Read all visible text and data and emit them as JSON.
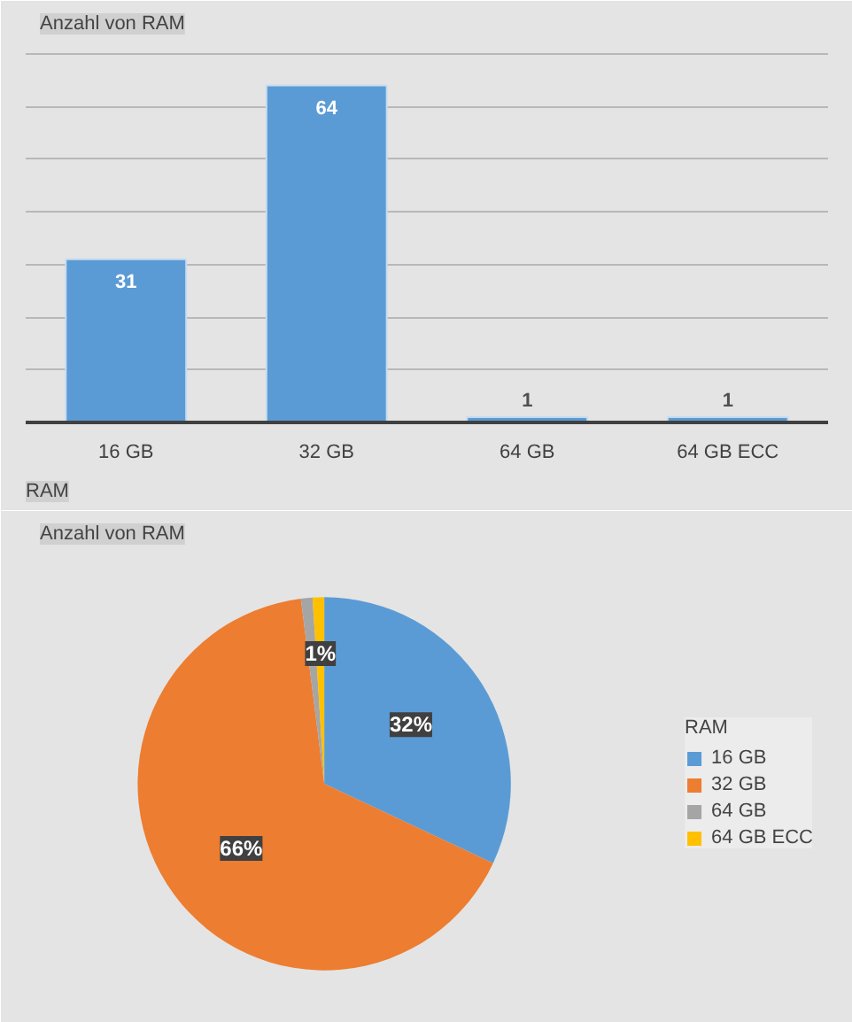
{
  "chart_data": [
    {
      "type": "bar",
      "title": "Anzahl von RAM",
      "xlabel": "RAM",
      "categories": [
        "16 GB",
        "32 GB",
        "64 GB",
        "64 GB ECC"
      ],
      "values": [
        31,
        64,
        1,
        1
      ],
      "color": "#5b9bd5",
      "data_labels": true,
      "ylim": [
        0,
        72
      ],
      "yticks": [
        {
          "value": 0,
          "label": null
        },
        {
          "value": 10,
          "label": null
        },
        {
          "value": 20,
          "label": null
        },
        {
          "value": 30,
          "label": null
        },
        {
          "value": 40,
          "label": null
        },
        {
          "value": 50,
          "label": null
        },
        {
          "value": 60,
          "label": null
        },
        {
          "value": 70,
          "label": null
        }
      ],
      "tick_labels": "x",
      "grid": "y"
    },
    {
      "type": "pie",
      "title": "Anzahl von RAM",
      "legend_title": "RAM",
      "legend": "right",
      "categories": [
        "16 GB",
        "32 GB",
        "64 GB",
        "64 GB ECC"
      ],
      "values": [
        32,
        66,
        1,
        1
      ],
      "colors": [
        "#5b9bd5",
        "#ed7d31",
        "#a5a5a5",
        "#ffc000"
      ],
      "value_labels": [
        "32%",
        "66%",
        null,
        "1%"
      ]
    }
  ]
}
